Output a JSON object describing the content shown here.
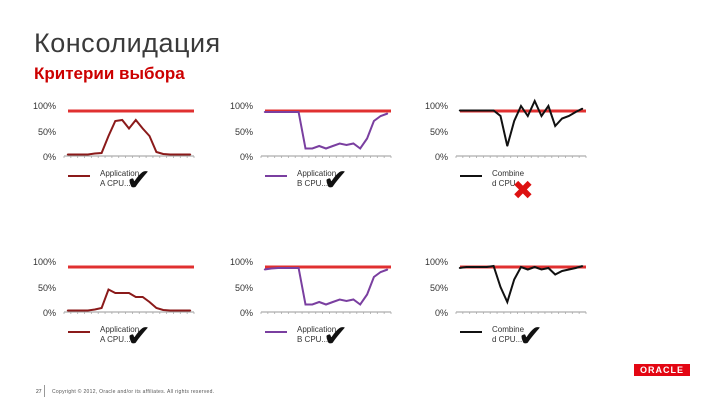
{
  "header": {
    "title": "Консолидация",
    "subtitle": "Критерии выбора"
  },
  "colors": {
    "threshold": "#e03030",
    "series_a": "#8b1a1a",
    "series_b": "#7a3fa0",
    "series_combined": "#111111",
    "check": "#111111",
    "cross": "#dd1111"
  },
  "ticks": [
    "100%",
    "50%",
    "0%"
  ],
  "panels": [
    {
      "legend": [
        "Application",
        "A CPU..."
      ],
      "mark": "✔",
      "mark_type": "check",
      "color_key": "series_a"
    },
    {
      "legend": [
        "Application",
        "B CPU..."
      ],
      "mark": "✔",
      "mark_type": "check",
      "color_key": "series_b"
    },
    {
      "legend": [
        "Combine",
        "d CPU..."
      ],
      "mark": "✖",
      "mark_type": "cross",
      "color_key": "series_combined"
    },
    {
      "legend": [
        "Application",
        "A CPU..."
      ],
      "mark": "✔",
      "mark_type": "check",
      "color_key": "series_a"
    },
    {
      "legend": [
        "Application",
        "B CPU..."
      ],
      "mark": "✔",
      "mark_type": "check",
      "color_key": "series_b"
    },
    {
      "legend": [
        "Combine",
        "d CPU..."
      ],
      "mark": "✔",
      "mark_type": "check",
      "color_key": "series_combined"
    }
  ],
  "chart_data": [
    {
      "type": "line",
      "ylim": [
        0,
        100
      ],
      "threshold": 90,
      "series": [
        {
          "name": "Application A CPU...",
          "values": [
            3,
            3,
            3,
            3,
            5,
            6,
            40,
            70,
            72,
            55,
            72,
            55,
            40,
            8,
            4,
            3,
            3,
            3,
            3
          ]
        }
      ]
    },
    {
      "type": "line",
      "ylim": [
        0,
        100
      ],
      "threshold": 90,
      "series": [
        {
          "name": "Application B CPU...",
          "values": [
            88,
            88,
            88,
            88,
            88,
            88,
            15,
            15,
            20,
            15,
            20,
            25,
            22,
            25,
            15,
            35,
            70,
            80,
            85
          ]
        }
      ]
    },
    {
      "type": "line",
      "ylim": [
        0,
        100
      ],
      "threshold": 90,
      "series": [
        {
          "name": "Combined CPU...",
          "values": [
            91,
            91,
            91,
            91,
            91,
            91,
            80,
            20,
            70,
            100,
            80,
            110,
            80,
            100,
            60,
            75,
            80,
            88,
            95
          ]
        }
      ]
    },
    {
      "type": "line",
      "ylim": [
        0,
        100
      ],
      "threshold": 90,
      "series": [
        {
          "name": "Application A CPU...",
          "values": [
            3,
            3,
            3,
            3,
            5,
            8,
            45,
            38,
            38,
            38,
            30,
            30,
            20,
            8,
            4,
            3,
            3,
            3,
            3
          ]
        }
      ]
    },
    {
      "type": "line",
      "ylim": [
        0,
        100
      ],
      "threshold": 90,
      "series": [
        {
          "name": "Application B CPU...",
          "values": [
            85,
            87,
            88,
            88,
            88,
            88,
            15,
            15,
            20,
            15,
            20,
            25,
            22,
            25,
            15,
            35,
            70,
            80,
            85
          ]
        }
      ]
    },
    {
      "type": "line",
      "ylim": [
        0,
        100
      ],
      "threshold": 90,
      "series": [
        {
          "name": "Combined CPU...",
          "values": [
            88,
            90,
            90,
            90,
            90,
            92,
            50,
            20,
            65,
            90,
            85,
            90,
            85,
            88,
            75,
            82,
            85,
            88,
            92
          ]
        }
      ]
    }
  ],
  "footer": {
    "page": "27",
    "copyright": "Copyright © 2012, Oracle and/or its affiliates. All rights reserved."
  },
  "brand": {
    "logo": "ORACLE"
  }
}
